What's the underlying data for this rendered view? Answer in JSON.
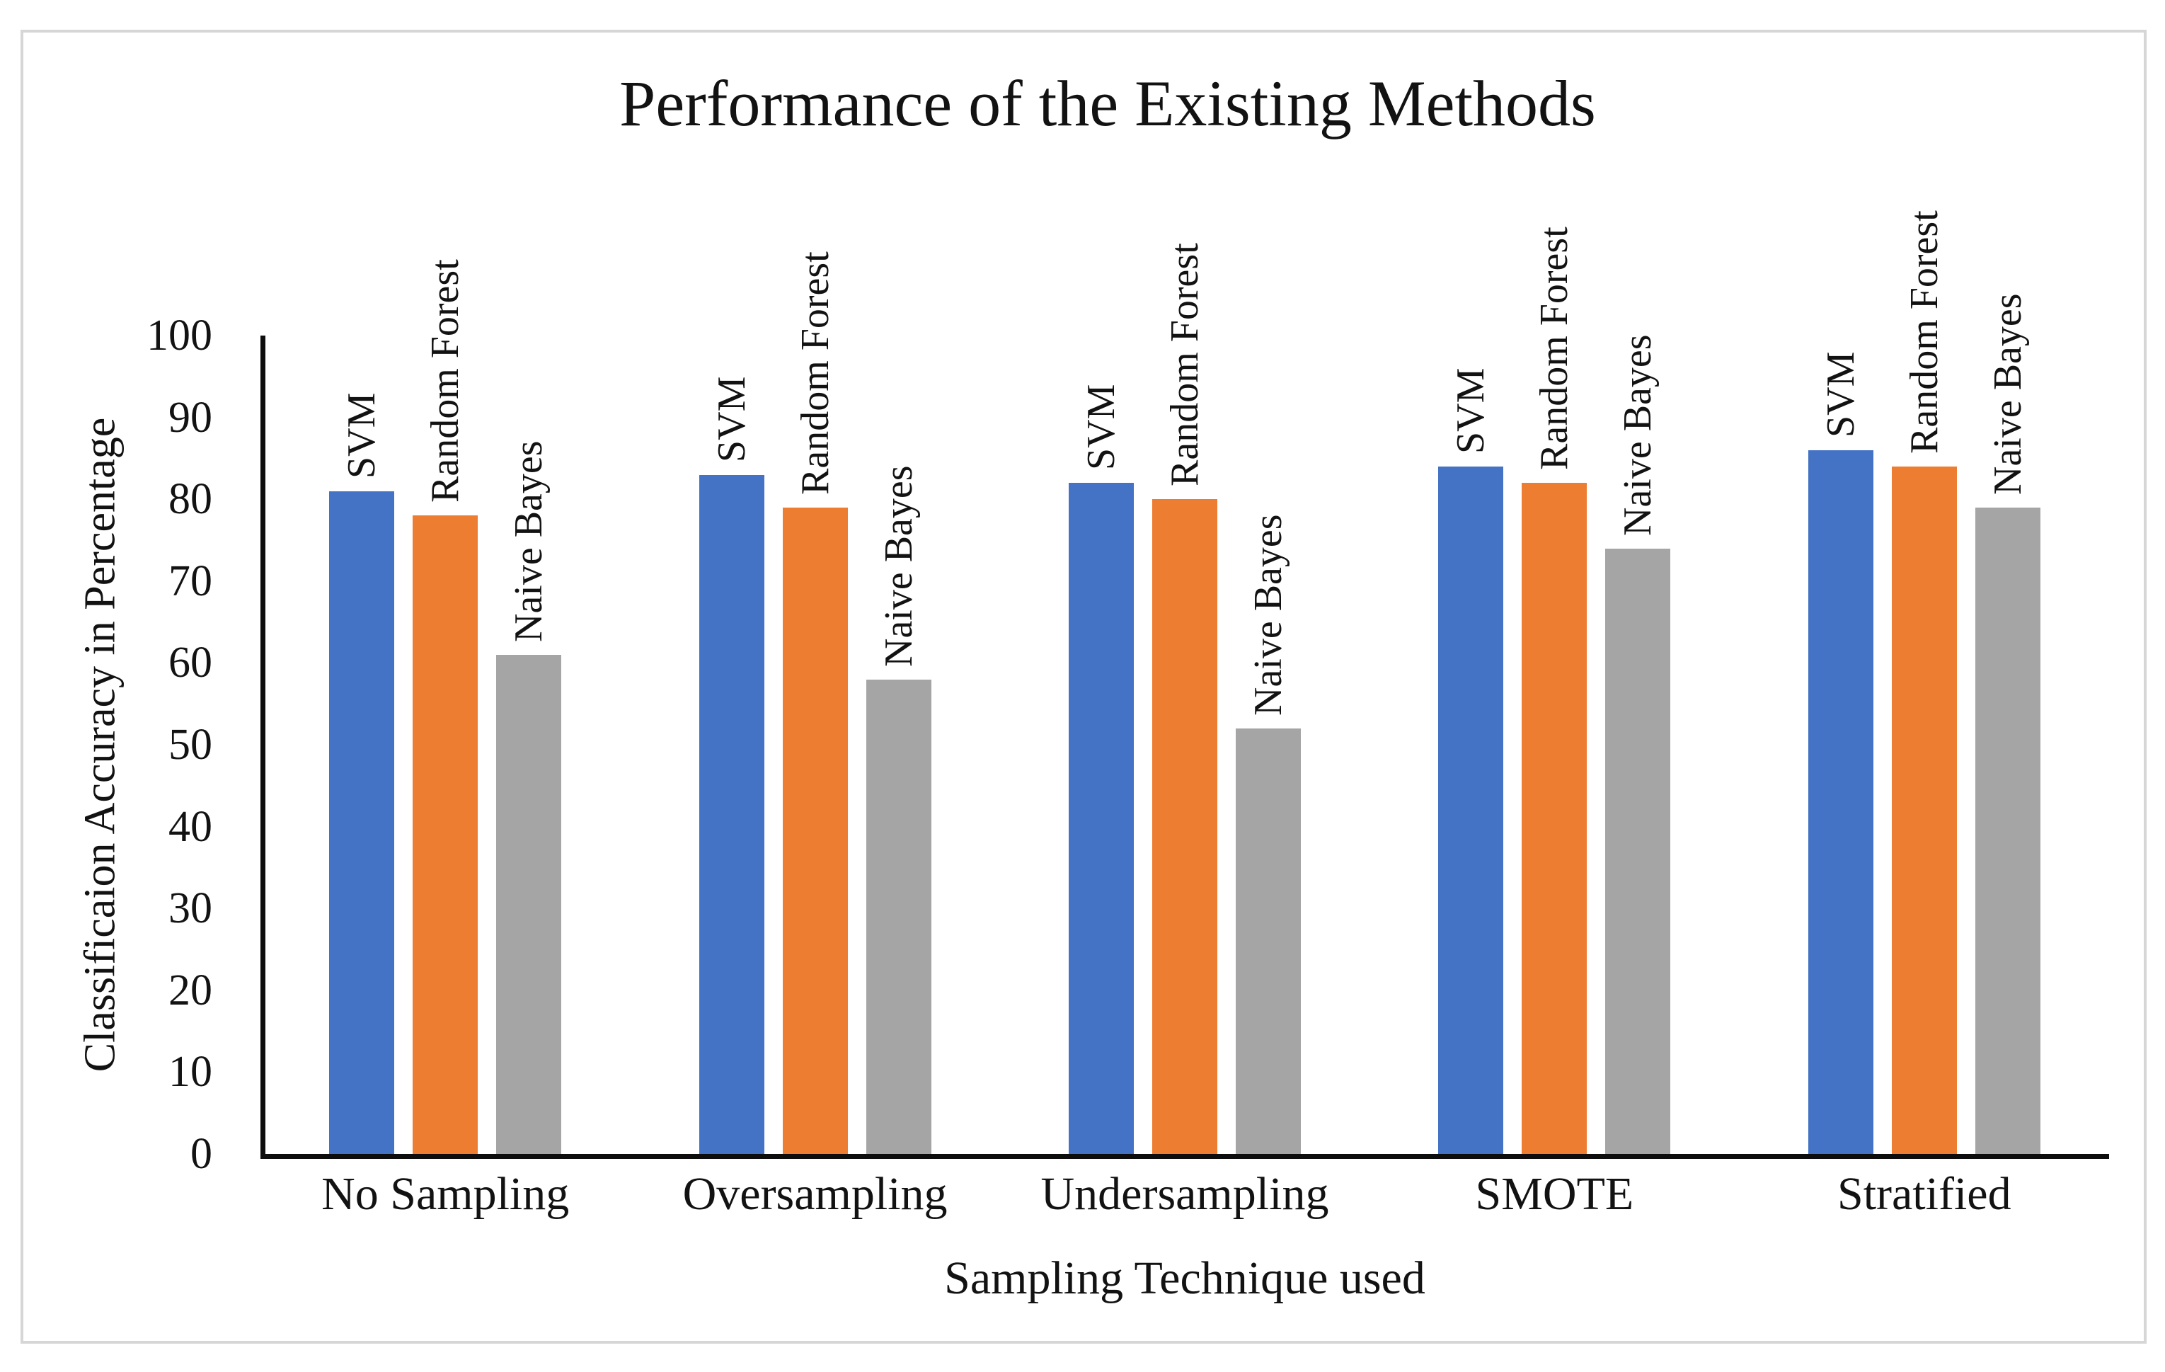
{
  "chart_data": {
    "type": "bar",
    "title": "Performance of the Existing Methods",
    "x_axis_title": "Sampling Technique used",
    "y_axis_title": "Classificaion Accuracy in Percentage",
    "categories": [
      "No Sampling",
      "Oversampling",
      "Undersampling",
      "SMOTE",
      "Stratified"
    ],
    "series": [
      {
        "name": "SVM",
        "color": "#4472C4",
        "values": [
          81,
          83,
          82,
          84,
          86
        ]
      },
      {
        "name": "Random Forest",
        "color": "#ED7D31",
        "values": [
          78,
          79,
          80,
          82,
          84
        ]
      },
      {
        "name": "Naive Bayes",
        "color": "#A5A5A5",
        "values": [
          61,
          58,
          52,
          74,
          79
        ]
      }
    ],
    "ylim": [
      0,
      100
    ],
    "ytick_step": 10,
    "yticks": [
      0,
      10,
      20,
      30,
      40,
      50,
      60,
      70,
      80,
      90,
      100
    ],
    "grid": false,
    "legend_position": "none",
    "bar_label_style": "series name rotated 90deg above each bar",
    "axis_color": "#0d0d0d",
    "frame_border_color": "#d6d6d6",
    "background_color": "#ffffff"
  }
}
